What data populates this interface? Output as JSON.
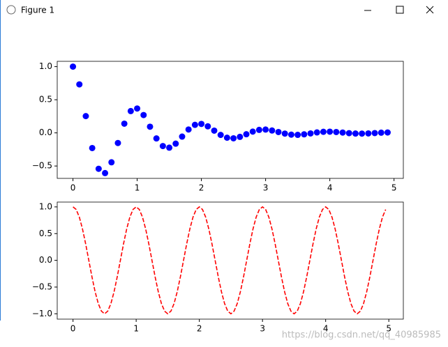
{
  "window": {
    "title": "Figure 1"
  },
  "watermark": "https://blog.csdn.net/qq_40985985",
  "chart_data": [
    {
      "type": "scatter",
      "color": "#0000ff",
      "x": [
        0,
        0.1,
        0.2,
        0.3,
        0.4,
        0.5,
        0.6,
        0.7,
        0.8,
        0.9,
        1,
        1.1,
        1.2,
        1.3,
        1.4,
        1.5,
        1.6,
        1.7,
        1.8,
        1.9,
        2,
        2.1,
        2.2,
        2.3,
        2.4,
        2.5,
        2.6,
        2.7,
        2.8,
        2.9,
        3,
        3.1,
        3.2,
        3.3,
        3.4,
        3.5,
        3.6,
        3.7,
        3.8,
        3.9,
        4,
        4.1,
        4.2,
        4.3,
        4.4,
        4.5,
        4.6,
        4.7,
        4.8,
        4.9
      ],
      "values": [
        1,
        0.732,
        0.253,
        -0.229,
        -0.542,
        -0.607,
        -0.444,
        -0.153,
        0.139,
        0.329,
        0.368,
        0.269,
        0.093,
        -0.084,
        -0.199,
        -0.223,
        -0.163,
        -0.056,
        0.051,
        0.121,
        0.135,
        0.099,
        0.034,
        -0.031,
        -0.073,
        -0.082,
        -0.06,
        -0.021,
        0.019,
        0.045,
        0.05,
        0.036,
        0.013,
        -0.011,
        -0.027,
        -0.03,
        -0.022,
        -0.008,
        0.007,
        0.016,
        0.018,
        0.013,
        0.005,
        -0.004,
        -0.01,
        -0.011,
        -0.008,
        -0.003,
        0.003,
        0.006
      ],
      "xlim": [
        -0.245,
        5.145
      ],
      "ylim": [
        -0.687,
        1.08
      ],
      "xticks": [
        0,
        1,
        2,
        3,
        4,
        5
      ],
      "yticks": [
        {
          "value": -0.5,
          "label": "−0.5"
        },
        {
          "value": 0,
          "label": "0.0"
        },
        {
          "value": 0.5,
          "label": "0.5"
        },
        {
          "value": 1,
          "label": "1.0"
        }
      ]
    },
    {
      "type": "line",
      "color": "#ff0000",
      "linestyle": "dashed",
      "x": [
        0,
        0.05,
        0.1,
        0.15,
        0.2,
        0.25,
        0.3,
        0.35,
        0.4,
        0.45,
        0.5,
        0.55,
        0.6,
        0.65,
        0.7,
        0.75,
        0.8,
        0.85,
        0.9,
        0.95,
        1,
        1.05,
        1.1,
        1.15,
        1.2,
        1.25,
        1.3,
        1.35,
        1.4,
        1.45,
        1.5,
        1.55,
        1.6,
        1.65,
        1.7,
        1.75,
        1.8,
        1.85,
        1.9,
        1.95,
        2,
        2.05,
        2.1,
        2.15,
        2.2,
        2.25,
        2.3,
        2.35,
        2.4,
        2.45,
        2.5,
        2.55,
        2.6,
        2.65,
        2.7,
        2.75,
        2.8,
        2.85,
        2.9,
        2.95,
        3,
        3.05,
        3.1,
        3.15,
        3.2,
        3.25,
        3.3,
        3.35,
        3.4,
        3.45,
        3.5,
        3.55,
        3.6,
        3.65,
        3.7,
        3.75,
        3.8,
        3.85,
        3.9,
        3.95,
        4,
        4.05,
        4.1,
        4.15,
        4.2,
        4.25,
        4.3,
        4.35,
        4.4,
        4.45,
        4.5,
        4.55,
        4.6,
        4.65,
        4.7,
        4.75,
        4.8,
        4.85,
        4.9,
        4.95
      ],
      "values": [
        1,
        0.951,
        0.809,
        0.588,
        0.309,
        0,
        -0.309,
        -0.588,
        -0.809,
        -0.951,
        -1,
        -0.951,
        -0.809,
        -0.588,
        -0.309,
        0,
        0.309,
        0.588,
        0.809,
        0.951,
        1,
        0.951,
        0.809,
        0.588,
        0.309,
        0,
        -0.309,
        -0.588,
        -0.809,
        -0.951,
        -1,
        -0.951,
        -0.809,
        -0.588,
        -0.309,
        0,
        0.309,
        0.588,
        0.809,
        0.951,
        1,
        0.951,
        0.809,
        0.588,
        0.309,
        0,
        -0.309,
        -0.588,
        -0.809,
        -0.951,
        -1,
        -0.951,
        -0.809,
        -0.588,
        -0.309,
        0,
        0.309,
        0.588,
        0.809,
        0.951,
        1,
        0.951,
        0.809,
        0.588,
        0.309,
        0,
        -0.309,
        -0.588,
        -0.809,
        -0.951,
        -1,
        -0.951,
        -0.809,
        -0.588,
        -0.309,
        0,
        0.309,
        0.588,
        0.809,
        0.951,
        1,
        0.951,
        0.809,
        0.588,
        0.309,
        0,
        -0.309,
        -0.588,
        -0.809,
        -0.951,
        -1,
        -0.951,
        -0.809,
        -0.588,
        -0.309,
        0,
        0.309,
        0.588,
        0.809,
        0.951
      ],
      "xlim": [
        -0.25,
        5.23
      ],
      "ylim": [
        -1.1,
        1.09
      ],
      "xticks": [
        0,
        1,
        2,
        3,
        4,
        5
      ],
      "yticks": [
        {
          "value": -1,
          "label": "−1.0"
        },
        {
          "value": -0.5,
          "label": "−0.5"
        },
        {
          "value": 0,
          "label": "0.0"
        },
        {
          "value": 0.5,
          "label": "0.5"
        },
        {
          "value": 1,
          "label": "1.0"
        }
      ]
    }
  ]
}
